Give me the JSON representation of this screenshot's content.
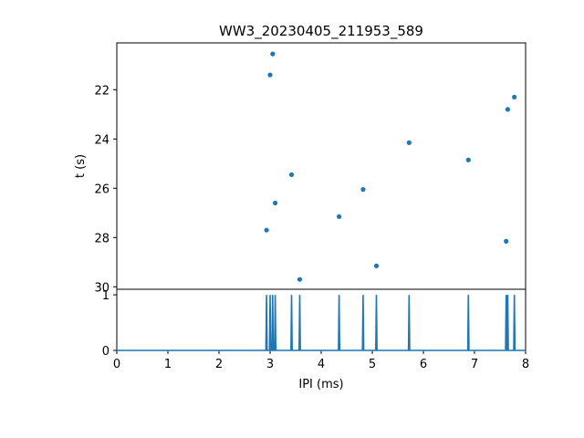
{
  "chart_data": [
    {
      "type": "scatter",
      "title": "WW3_20230405_211953_589",
      "xlabel": "",
      "ylabel": "t (s)",
      "xlim": [
        0,
        8
      ],
      "ylim": [
        30.1,
        20.1
      ],
      "y_inverted": true,
      "yticks": [
        22,
        24,
        26,
        28,
        30
      ],
      "ytick_labels": [
        "22",
        "24",
        "26",
        "28",
        "30"
      ],
      "color": "#1f77b4",
      "points": [
        {
          "x": 3.05,
          "y": 20.55
        },
        {
          "x": 3.0,
          "y": 21.4
        },
        {
          "x": 7.78,
          "y": 22.3
        },
        {
          "x": 7.65,
          "y": 22.8
        },
        {
          "x": 5.72,
          "y": 24.15
        },
        {
          "x": 6.88,
          "y": 24.85
        },
        {
          "x": 3.42,
          "y": 25.45
        },
        {
          "x": 4.82,
          "y": 26.05
        },
        {
          "x": 3.1,
          "y": 26.6
        },
        {
          "x": 4.35,
          "y": 27.15
        },
        {
          "x": 2.93,
          "y": 27.7
        },
        {
          "x": 7.62,
          "y": 28.15
        },
        {
          "x": 5.08,
          "y": 29.15
        },
        {
          "x": 3.58,
          "y": 29.7
        }
      ]
    },
    {
      "type": "line",
      "title": "",
      "xlabel": "IPI (ms)",
      "ylabel": "",
      "xlim": [
        0,
        8
      ],
      "ylim": [
        0,
        1.1
      ],
      "xticks": [
        0,
        1,
        2,
        3,
        4,
        5,
        6,
        7,
        8
      ],
      "xtick_labels": [
        "0",
        "1",
        "2",
        "3",
        "4",
        "5",
        "6",
        "7",
        "8"
      ],
      "yticks": [
        0,
        1
      ],
      "ytick_labels": [
        "0",
        "1"
      ],
      "color": "#1f77b4",
      "spikes_x": [
        2.93,
        3.0,
        3.05,
        3.1,
        3.42,
        3.58,
        4.35,
        4.82,
        5.08,
        5.72,
        6.88,
        7.62,
        7.65,
        7.78
      ],
      "spike_value": 1,
      "baseline": 0
    }
  ]
}
